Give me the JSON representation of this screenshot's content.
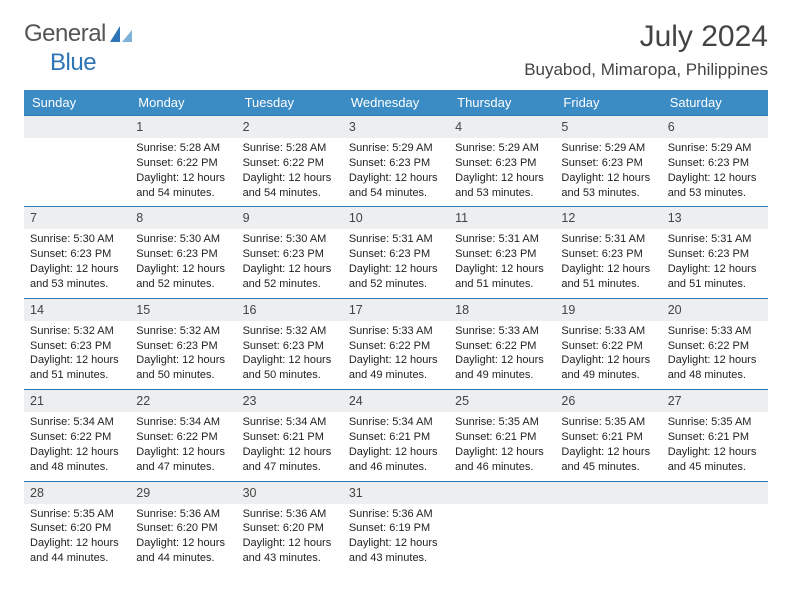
{
  "brand": {
    "primary": "General",
    "secondary": "Blue"
  },
  "colors": {
    "header_bg": "#3b8bc4",
    "header_text": "#ffffff",
    "daynum_bg": "#eceef0",
    "border": "#2e75b6",
    "text": "#222222",
    "logo_gray": "#555555",
    "logo_blue": "#2e75b6"
  },
  "typography": {
    "title_fontsize": 30,
    "location_fontsize": 17,
    "dayhead_fontsize": 13,
    "cell_fontsize": 11
  },
  "title": "July 2024",
  "location": "Buyabod, Mimaropa, Philippines",
  "day_headers": [
    "Sunday",
    "Monday",
    "Tuesday",
    "Wednesday",
    "Thursday",
    "Friday",
    "Saturday"
  ],
  "weeks": [
    [
      {
        "num": "",
        "sunrise": "",
        "sunset": "",
        "daylight": ""
      },
      {
        "num": "1",
        "sunrise": "Sunrise: 5:28 AM",
        "sunset": "Sunset: 6:22 PM",
        "daylight": "Daylight: 12 hours and 54 minutes."
      },
      {
        "num": "2",
        "sunrise": "Sunrise: 5:28 AM",
        "sunset": "Sunset: 6:22 PM",
        "daylight": "Daylight: 12 hours and 54 minutes."
      },
      {
        "num": "3",
        "sunrise": "Sunrise: 5:29 AM",
        "sunset": "Sunset: 6:23 PM",
        "daylight": "Daylight: 12 hours and 54 minutes."
      },
      {
        "num": "4",
        "sunrise": "Sunrise: 5:29 AM",
        "sunset": "Sunset: 6:23 PM",
        "daylight": "Daylight: 12 hours and 53 minutes."
      },
      {
        "num": "5",
        "sunrise": "Sunrise: 5:29 AM",
        "sunset": "Sunset: 6:23 PM",
        "daylight": "Daylight: 12 hours and 53 minutes."
      },
      {
        "num": "6",
        "sunrise": "Sunrise: 5:29 AM",
        "sunset": "Sunset: 6:23 PM",
        "daylight": "Daylight: 12 hours and 53 minutes."
      }
    ],
    [
      {
        "num": "7",
        "sunrise": "Sunrise: 5:30 AM",
        "sunset": "Sunset: 6:23 PM",
        "daylight": "Daylight: 12 hours and 53 minutes."
      },
      {
        "num": "8",
        "sunrise": "Sunrise: 5:30 AM",
        "sunset": "Sunset: 6:23 PM",
        "daylight": "Daylight: 12 hours and 52 minutes."
      },
      {
        "num": "9",
        "sunrise": "Sunrise: 5:30 AM",
        "sunset": "Sunset: 6:23 PM",
        "daylight": "Daylight: 12 hours and 52 minutes."
      },
      {
        "num": "10",
        "sunrise": "Sunrise: 5:31 AM",
        "sunset": "Sunset: 6:23 PM",
        "daylight": "Daylight: 12 hours and 52 minutes."
      },
      {
        "num": "11",
        "sunrise": "Sunrise: 5:31 AM",
        "sunset": "Sunset: 6:23 PM",
        "daylight": "Daylight: 12 hours and 51 minutes."
      },
      {
        "num": "12",
        "sunrise": "Sunrise: 5:31 AM",
        "sunset": "Sunset: 6:23 PM",
        "daylight": "Daylight: 12 hours and 51 minutes."
      },
      {
        "num": "13",
        "sunrise": "Sunrise: 5:31 AM",
        "sunset": "Sunset: 6:23 PM",
        "daylight": "Daylight: 12 hours and 51 minutes."
      }
    ],
    [
      {
        "num": "14",
        "sunrise": "Sunrise: 5:32 AM",
        "sunset": "Sunset: 6:23 PM",
        "daylight": "Daylight: 12 hours and 51 minutes."
      },
      {
        "num": "15",
        "sunrise": "Sunrise: 5:32 AM",
        "sunset": "Sunset: 6:23 PM",
        "daylight": "Daylight: 12 hours and 50 minutes."
      },
      {
        "num": "16",
        "sunrise": "Sunrise: 5:32 AM",
        "sunset": "Sunset: 6:23 PM",
        "daylight": "Daylight: 12 hours and 50 minutes."
      },
      {
        "num": "17",
        "sunrise": "Sunrise: 5:33 AM",
        "sunset": "Sunset: 6:22 PM",
        "daylight": "Daylight: 12 hours and 49 minutes."
      },
      {
        "num": "18",
        "sunrise": "Sunrise: 5:33 AM",
        "sunset": "Sunset: 6:22 PM",
        "daylight": "Daylight: 12 hours and 49 minutes."
      },
      {
        "num": "19",
        "sunrise": "Sunrise: 5:33 AM",
        "sunset": "Sunset: 6:22 PM",
        "daylight": "Daylight: 12 hours and 49 minutes."
      },
      {
        "num": "20",
        "sunrise": "Sunrise: 5:33 AM",
        "sunset": "Sunset: 6:22 PM",
        "daylight": "Daylight: 12 hours and 48 minutes."
      }
    ],
    [
      {
        "num": "21",
        "sunrise": "Sunrise: 5:34 AM",
        "sunset": "Sunset: 6:22 PM",
        "daylight": "Daylight: 12 hours and 48 minutes."
      },
      {
        "num": "22",
        "sunrise": "Sunrise: 5:34 AM",
        "sunset": "Sunset: 6:22 PM",
        "daylight": "Daylight: 12 hours and 47 minutes."
      },
      {
        "num": "23",
        "sunrise": "Sunrise: 5:34 AM",
        "sunset": "Sunset: 6:21 PM",
        "daylight": "Daylight: 12 hours and 47 minutes."
      },
      {
        "num": "24",
        "sunrise": "Sunrise: 5:34 AM",
        "sunset": "Sunset: 6:21 PM",
        "daylight": "Daylight: 12 hours and 46 minutes."
      },
      {
        "num": "25",
        "sunrise": "Sunrise: 5:35 AM",
        "sunset": "Sunset: 6:21 PM",
        "daylight": "Daylight: 12 hours and 46 minutes."
      },
      {
        "num": "26",
        "sunrise": "Sunrise: 5:35 AM",
        "sunset": "Sunset: 6:21 PM",
        "daylight": "Daylight: 12 hours and 45 minutes."
      },
      {
        "num": "27",
        "sunrise": "Sunrise: 5:35 AM",
        "sunset": "Sunset: 6:21 PM",
        "daylight": "Daylight: 12 hours and 45 minutes."
      }
    ],
    [
      {
        "num": "28",
        "sunrise": "Sunrise: 5:35 AM",
        "sunset": "Sunset: 6:20 PM",
        "daylight": "Daylight: 12 hours and 44 minutes."
      },
      {
        "num": "29",
        "sunrise": "Sunrise: 5:36 AM",
        "sunset": "Sunset: 6:20 PM",
        "daylight": "Daylight: 12 hours and 44 minutes."
      },
      {
        "num": "30",
        "sunrise": "Sunrise: 5:36 AM",
        "sunset": "Sunset: 6:20 PM",
        "daylight": "Daylight: 12 hours and 43 minutes."
      },
      {
        "num": "31",
        "sunrise": "Sunrise: 5:36 AM",
        "sunset": "Sunset: 6:19 PM",
        "daylight": "Daylight: 12 hours and 43 minutes."
      },
      {
        "num": "",
        "sunrise": "",
        "sunset": "",
        "daylight": ""
      },
      {
        "num": "",
        "sunrise": "",
        "sunset": "",
        "daylight": ""
      },
      {
        "num": "",
        "sunrise": "",
        "sunset": "",
        "daylight": ""
      }
    ]
  ]
}
